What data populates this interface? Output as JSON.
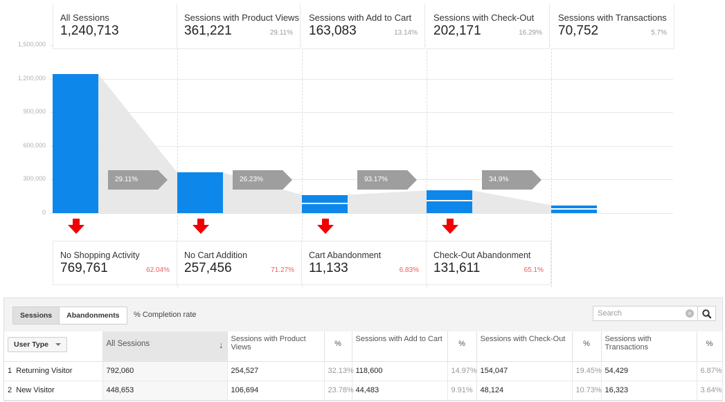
{
  "colors": {
    "bar": "#0d87ea",
    "conversion_arrow": "#9e9e9e",
    "drop_arrow": "#f00000",
    "abandon_pct": "#f05a5a",
    "funnel_shade": "#e8e8e8"
  },
  "chart_data": {
    "type": "bar",
    "y_ticks": [
      "1,500,000",
      "1,200,000",
      "900,000",
      "600,000",
      "300,000",
      "0"
    ],
    "ylim": [
      0,
      1500000
    ],
    "categories": [
      "All Sessions",
      "Sessions with Product Views",
      "Sessions with Add to Cart",
      "Sessions with Check-Out",
      "Sessions with Transactions"
    ],
    "values": [
      1240713,
      361221,
      163083,
      202171,
      70752
    ],
    "display_values": [
      "1,240,713",
      "361,221",
      "163,083",
      "202,171",
      "70,752"
    ],
    "share_labels": [
      "",
      "29.11%",
      "13.14%",
      "16.29%",
      "5.7%"
    ],
    "conversion_rates": [
      "29.11%",
      "26.23%",
      "93.17%",
      "34.9%"
    ],
    "abandonment": [
      {
        "name": "No Shopping Activity",
        "value": "769,761",
        "pct": "62.04%"
      },
      {
        "name": "No Cart Addition",
        "value": "257,456",
        "pct": "71.27%"
      },
      {
        "name": "Cart Abandonment",
        "value": "11,133",
        "pct": "6.83%"
      },
      {
        "name": "Check-Out Abandonment",
        "value": "131,611",
        "pct": "65.1%"
      }
    ],
    "grid": true
  },
  "toolbar": {
    "tabs": [
      "Sessions",
      "Abandonments"
    ],
    "active_tab": "Sessions",
    "completion_label": "% Completion rate",
    "search_placeholder": "Search",
    "search_clear_glyph": "×"
  },
  "table": {
    "user_type_label": "User Type",
    "headers": [
      "All Sessions",
      "Sessions with Product Views",
      "%",
      "Sessions with Add to Cart",
      "%",
      "Sessions with Check-Out",
      "%",
      "Sessions with Transactions",
      "%"
    ],
    "sort_glyph": "↓",
    "rows": [
      {
        "num": "1",
        "label": "Returning Visitor",
        "cells": [
          "792,060",
          "254,527",
          "32.13%",
          "118,600",
          "14.97%",
          "154,047",
          "19.45%",
          "54,429",
          "6.87%"
        ]
      },
      {
        "num": "2",
        "label": "New Visitor",
        "cells": [
          "448,653",
          "106,694",
          "23.78%",
          "44,483",
          "9.91%",
          "48,124",
          "10.73%",
          "16,323",
          "3.64%"
        ]
      }
    ]
  }
}
